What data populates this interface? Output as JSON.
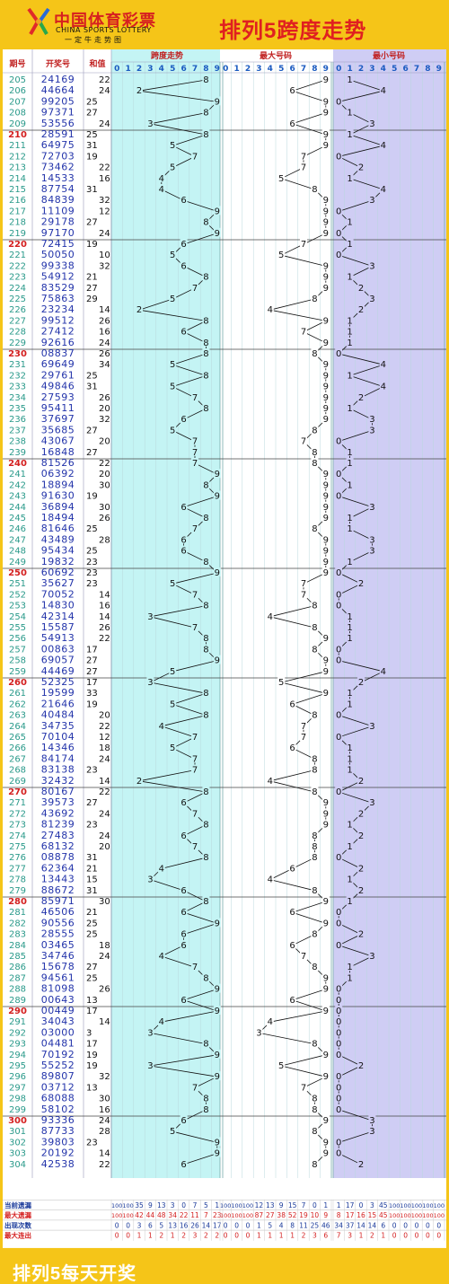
{
  "header": {
    "logo_title": "中国体育彩票",
    "logo_subtitle": "CHINA SPORTS LOTTERY",
    "logo_slogan": "一定牛走势图",
    "page_title": "排列5跨度走势"
  },
  "footer": {
    "text": "排列5每天开奖"
  },
  "colors": {
    "background": "#f5c518",
    "span_zone": "#c4f4f4",
    "max_zone": "#ffffff",
    "min_zone": "#cfcdf4",
    "issue_text": "#2a9a8a",
    "issue_highlight": "#d42020",
    "number_text": "#2233aa",
    "line": "#111111"
  },
  "chart_data": {
    "type": "table",
    "columns": {
      "issue": "期号",
      "draw": "开奖号",
      "sum": "和值",
      "span": "跨度走势",
      "max": "最大号码",
      "min": "最小号码"
    },
    "digit_labels": [
      "0",
      "1",
      "2",
      "3",
      "4",
      "5",
      "6",
      "7",
      "8",
      "9"
    ],
    "rows": [
      {
        "issue": "205",
        "draw": "24169",
        "sum": 22
      },
      {
        "issue": "206",
        "draw": "44664",
        "sum": 24
      },
      {
        "issue": "207",
        "draw": "99205",
        "sum": 25
      },
      {
        "issue": "208",
        "draw": "97371",
        "sum": 27
      },
      {
        "issue": "209",
        "draw": "53556",
        "sum": 24
      },
      {
        "issue": "210",
        "draw": "28591",
        "sum": 25
      },
      {
        "issue": "211",
        "draw": "64975",
        "sum": 31
      },
      {
        "issue": "212",
        "draw": "72703",
        "sum": 19
      },
      {
        "issue": "213",
        "draw": "73462",
        "sum": 22
      },
      {
        "issue": "214",
        "draw": "14533",
        "sum": 16
      },
      {
        "issue": "215",
        "draw": "87754",
        "sum": 31
      },
      {
        "issue": "216",
        "draw": "84839",
        "sum": 32
      },
      {
        "issue": "217",
        "draw": "11109",
        "sum": 12
      },
      {
        "issue": "218",
        "draw": "29178",
        "sum": 27
      },
      {
        "issue": "219",
        "draw": "97170",
        "sum": 24
      },
      {
        "issue": "220",
        "draw": "72415",
        "sum": 19
      },
      {
        "issue": "221",
        "draw": "50050",
        "sum": 10
      },
      {
        "issue": "222",
        "draw": "99338",
        "sum": 32
      },
      {
        "issue": "223",
        "draw": "54912",
        "sum": 21
      },
      {
        "issue": "224",
        "draw": "83529",
        "sum": 27
      },
      {
        "issue": "225",
        "draw": "75863",
        "sum": 29
      },
      {
        "issue": "226",
        "draw": "23234",
        "sum": 14
      },
      {
        "issue": "227",
        "draw": "99512",
        "sum": 26
      },
      {
        "issue": "228",
        "draw": "27412",
        "sum": 16
      },
      {
        "issue": "229",
        "draw": "92616",
        "sum": 24
      },
      {
        "issue": "230",
        "draw": "08837",
        "sum": 26
      },
      {
        "issue": "231",
        "draw": "69649",
        "sum": 34
      },
      {
        "issue": "232",
        "draw": "29761",
        "sum": 25
      },
      {
        "issue": "233",
        "draw": "49846",
        "sum": 31
      },
      {
        "issue": "234",
        "draw": "27593",
        "sum": 26
      },
      {
        "issue": "235",
        "draw": "95411",
        "sum": 20
      },
      {
        "issue": "236",
        "draw": "37697",
        "sum": 32
      },
      {
        "issue": "237",
        "draw": "35685",
        "sum": 27
      },
      {
        "issue": "238",
        "draw": "43067",
        "sum": 20
      },
      {
        "issue": "239",
        "draw": "16848",
        "sum": 27
      },
      {
        "issue": "240",
        "draw": "81526",
        "sum": 22
      },
      {
        "issue": "241",
        "draw": "06392",
        "sum": 20
      },
      {
        "issue": "242",
        "draw": "18894",
        "sum": 30
      },
      {
        "issue": "243",
        "draw": "91630",
        "sum": 19
      },
      {
        "issue": "244",
        "draw": "36894",
        "sum": 30
      },
      {
        "issue": "245",
        "draw": "18494",
        "sum": 26
      },
      {
        "issue": "246",
        "draw": "81646",
        "sum": 25
      },
      {
        "issue": "247",
        "draw": "43489",
        "sum": 28
      },
      {
        "issue": "248",
        "draw": "95434",
        "sum": 25
      },
      {
        "issue": "249",
        "draw": "19832",
        "sum": 23
      },
      {
        "issue": "250",
        "draw": "60692",
        "sum": 23
      },
      {
        "issue": "251",
        "draw": "35627",
        "sum": 23
      },
      {
        "issue": "252",
        "draw": "70052",
        "sum": 14
      },
      {
        "issue": "253",
        "draw": "14830",
        "sum": 16
      },
      {
        "issue": "254",
        "draw": "42314",
        "sum": 14
      },
      {
        "issue": "255",
        "draw": "15587",
        "sum": 26
      },
      {
        "issue": "256",
        "draw": "54913",
        "sum": 22
      },
      {
        "issue": "257",
        "draw": "00863",
        "sum": 17
      },
      {
        "issue": "258",
        "draw": "69057",
        "sum": 27
      },
      {
        "issue": "259",
        "draw": "44469",
        "sum": 27
      },
      {
        "issue": "260",
        "draw": "52325",
        "sum": 17
      },
      {
        "issue": "261",
        "draw": "19599",
        "sum": 33
      },
      {
        "issue": "262",
        "draw": "21646",
        "sum": 19
      },
      {
        "issue": "263",
        "draw": "40484",
        "sum": 20
      },
      {
        "issue": "264",
        "draw": "34735",
        "sum": 22
      },
      {
        "issue": "265",
        "draw": "70104",
        "sum": 12
      },
      {
        "issue": "266",
        "draw": "14346",
        "sum": 18
      },
      {
        "issue": "267",
        "draw": "84174",
        "sum": 24
      },
      {
        "issue": "268",
        "draw": "83138",
        "sum": 23
      },
      {
        "issue": "269",
        "draw": "32432",
        "sum": 14
      },
      {
        "issue": "270",
        "draw": "80167",
        "sum": 22
      },
      {
        "issue": "271",
        "draw": "39573",
        "sum": 27
      },
      {
        "issue": "272",
        "draw": "43692",
        "sum": 24
      },
      {
        "issue": "273",
        "draw": "81239",
        "sum": 23
      },
      {
        "issue": "274",
        "draw": "27483",
        "sum": 24
      },
      {
        "issue": "275",
        "draw": "68132",
        "sum": 20
      },
      {
        "issue": "276",
        "draw": "08878",
        "sum": 31
      },
      {
        "issue": "277",
        "draw": "62364",
        "sum": 21
      },
      {
        "issue": "278",
        "draw": "13443",
        "sum": 15
      },
      {
        "issue": "279",
        "draw": "88672",
        "sum": 31
      },
      {
        "issue": "280",
        "draw": "85971",
        "sum": 30
      },
      {
        "issue": "281",
        "draw": "46506",
        "sum": 21
      },
      {
        "issue": "282",
        "draw": "90556",
        "sum": 25
      },
      {
        "issue": "283",
        "draw": "28555",
        "sum": 25
      },
      {
        "issue": "284",
        "draw": "03465",
        "sum": 18
      },
      {
        "issue": "285",
        "draw": "34746",
        "sum": 24
      },
      {
        "issue": "286",
        "draw": "15678",
        "sum": 27
      },
      {
        "issue": "287",
        "draw": "94561",
        "sum": 25
      },
      {
        "issue": "288",
        "draw": "81098",
        "sum": 26
      },
      {
        "issue": "289",
        "draw": "00643",
        "sum": 13
      },
      {
        "issue": "290",
        "draw": "00449",
        "sum": 17
      },
      {
        "issue": "291",
        "draw": "34043",
        "sum": 14
      },
      {
        "issue": "292",
        "draw": "03000",
        "sum": 3
      },
      {
        "issue": "293",
        "draw": "04481",
        "sum": 17
      },
      {
        "issue": "294",
        "draw": "70192",
        "sum": 19
      },
      {
        "issue": "295",
        "draw": "55252",
        "sum": 19
      },
      {
        "issue": "296",
        "draw": "89807",
        "sum": 32
      },
      {
        "issue": "297",
        "draw": "03712",
        "sum": 13
      },
      {
        "issue": "298",
        "draw": "68088",
        "sum": 30
      },
      {
        "issue": "299",
        "draw": "58102",
        "sum": 16
      },
      {
        "issue": "300",
        "draw": "93336",
        "sum": 24
      },
      {
        "issue": "301",
        "draw": "87733",
        "sum": 28
      },
      {
        "issue": "302",
        "draw": "39803",
        "sum": 23
      },
      {
        "issue": "303",
        "draw": "20192",
        "sum": 14
      },
      {
        "issue": "304",
        "draw": "42538",
        "sum": 22
      }
    ],
    "stats": [
      {
        "label": "当前遗漏",
        "span": [
          "100",
          "100",
          "35",
          "9",
          "13",
          "3",
          "0",
          "7",
          "5",
          "1"
        ],
        "max": [
          "100",
          "100",
          "100",
          "12",
          "13",
          "9",
          "15",
          "7",
          "0",
          "1"
        ],
        "min": [
          "1",
          "17",
          "0",
          "3",
          "45",
          "100",
          "100",
          "100",
          "100",
          "100"
        ]
      },
      {
        "label": "最大遗漏",
        "span": [
          "100",
          "100",
          "42",
          "44",
          "48",
          "34",
          "22",
          "11",
          "7",
          "23"
        ],
        "max": [
          "100",
          "100",
          "100",
          "87",
          "27",
          "38",
          "52",
          "19",
          "10",
          "9"
        ],
        "min": [
          "8",
          "17",
          "16",
          "15",
          "45",
          "100",
          "100",
          "100",
          "100",
          "100"
        ]
      },
      {
        "label": "出现次数",
        "span": [
          "0",
          "0",
          "3",
          "6",
          "5",
          "13",
          "16",
          "26",
          "14",
          "17"
        ],
        "max": [
          "0",
          "0",
          "0",
          "1",
          "5",
          "4",
          "8",
          "11",
          "25",
          "46"
        ],
        "min": [
          "34",
          "37",
          "14",
          "14",
          "6",
          "0",
          "0",
          "0",
          "0",
          "0"
        ]
      },
      {
        "label": "最大连出",
        "span": [
          "0",
          "0",
          "1",
          "1",
          "2",
          "1",
          "2",
          "3",
          "2",
          "2"
        ],
        "max": [
          "0",
          "0",
          "0",
          "1",
          "1",
          "1",
          "1",
          "2",
          "3",
          "6"
        ],
        "min": [
          "7",
          "3",
          "1",
          "2",
          "1",
          "0",
          "0",
          "0",
          "0",
          "0"
        ]
      }
    ]
  }
}
